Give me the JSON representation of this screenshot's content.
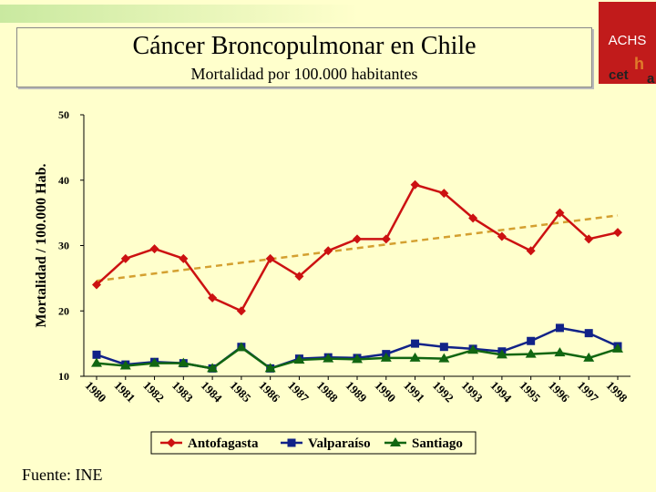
{
  "header": {
    "title": "Cáncer Broncopulmonar en Chile",
    "subtitle": "Mortalidad por 100.000 habitantes"
  },
  "logos": {
    "achs": "ACHS",
    "cetha_pre": "cet",
    "cetha_h": "h",
    "cetha_post": "a"
  },
  "footer": {
    "source": "Fuente: INE"
  },
  "chart_data": {
    "type": "line",
    "ylabel": "Mortalidad / 100.000 Hab.",
    "xlabel": "",
    "ylim": [
      10,
      50
    ],
    "yticks": [
      10,
      20,
      30,
      40,
      50
    ],
    "x": [
      "1980",
      "1981",
      "1982",
      "1983",
      "1984",
      "1985",
      "1986",
      "1987",
      "1988",
      "1989",
      "1990",
      "1991",
      "1992",
      "1993",
      "1994",
      "1995",
      "1996",
      "1997",
      "1998"
    ],
    "legend_position": "bottom",
    "series": [
      {
        "name": "Antofagasta",
        "color": "#cc1111",
        "marker": "diamond",
        "values": [
          24,
          28,
          29.5,
          28,
          22,
          20,
          28,
          25.3,
          29.2,
          31,
          31,
          39.3,
          38,
          34.2,
          31.4,
          29.2,
          35,
          31,
          32
        ]
      },
      {
        "name": "Valparaíso",
        "color": "#112288",
        "marker": "square",
        "values": [
          13.3,
          11.8,
          12.2,
          12,
          11.2,
          14.5,
          11.2,
          12.7,
          12.9,
          12.8,
          13.4,
          15,
          14.5,
          14.2,
          13.8,
          15.4,
          17.4,
          16.6,
          14.6
        ]
      },
      {
        "name": "Santiago",
        "color": "#116611",
        "marker": "triangle",
        "values": [
          12,
          11.6,
          12,
          12,
          11.2,
          14.4,
          11.2,
          12.5,
          12.7,
          12.6,
          12.8,
          12.8,
          12.7,
          14,
          13.3,
          13.4,
          13.6,
          12.8,
          14.2
        ]
      }
    ],
    "trendline": {
      "series": "Antofagasta",
      "color": "#d4a030",
      "style": "dashed",
      "from": 24.6,
      "to": 34.6
    }
  }
}
